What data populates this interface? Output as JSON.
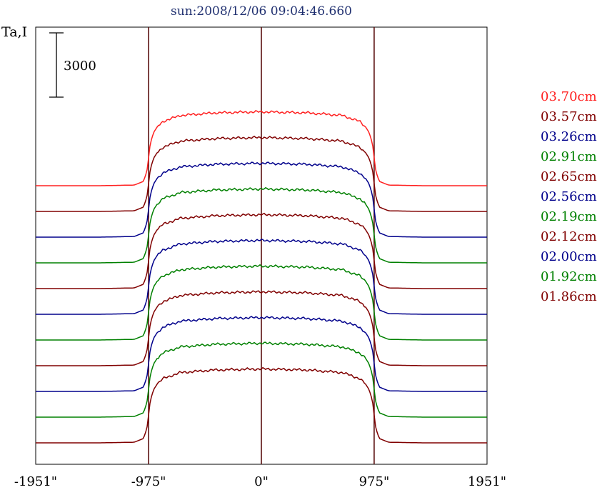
{
  "chart_data": {
    "type": "line",
    "title": "sun:2008/12/06 09:04:46.660",
    "ylabel": "Ta,I",
    "scale_bar_label": "3000",
    "scale_bar_value": 3000,
    "x_ticks": [
      {
        "value": -1951,
        "label": "-1951\""
      },
      {
        "value": -975,
        "label": "-975\""
      },
      {
        "value": 0,
        "label": "0\""
      },
      {
        "value": 975,
        "label": "975\""
      },
      {
        "value": 1951,
        "label": "1951\""
      }
    ],
    "xlim": [
      -1951,
      1951
    ],
    "reference_lines": [
      -975,
      0,
      975
    ],
    "grid": false,
    "legend_position": "right",
    "series": [
      {
        "name": "03.70cm",
        "color": "#ff2020",
        "offset_rank": 10
      },
      {
        "name": "03.57cm",
        "color": "#800000",
        "offset_rank": 9
      },
      {
        "name": "03.26cm",
        "color": "#00008b",
        "offset_rank": 8
      },
      {
        "name": "02.91cm",
        "color": "#008000",
        "offset_rank": 7
      },
      {
        "name": "02.65cm",
        "color": "#800000",
        "offset_rank": 6
      },
      {
        "name": "02.56cm",
        "color": "#00008b",
        "offset_rank": 5
      },
      {
        "name": "02.19cm",
        "color": "#008000",
        "offset_rank": 4
      },
      {
        "name": "02.12cm",
        "color": "#800000",
        "offset_rank": 3
      },
      {
        "name": "02.00cm",
        "color": "#00008b",
        "offset_rank": 2
      },
      {
        "name": "01.92cm",
        "color": "#008000",
        "offset_rank": 1
      },
      {
        "name": "01.86cm",
        "color": "#800000",
        "offset_rank": 0
      }
    ],
    "profile": {
      "x": [
        -1951,
        -1400,
        -1100,
        -1020,
        -990,
        -975,
        -960,
        -930,
        -900,
        -850,
        -700,
        -400,
        0,
        400,
        700,
        850,
        900,
        930,
        960,
        975,
        990,
        1020,
        1100,
        1400,
        1951
      ],
      "y": [
        0,
        0,
        30,
        200,
        650,
        1300,
        2000,
        2500,
        2750,
        3000,
        3280,
        3400,
        3450,
        3400,
        3280,
        3000,
        2750,
        2500,
        2000,
        1300,
        650,
        200,
        30,
        0,
        0
      ]
    }
  }
}
